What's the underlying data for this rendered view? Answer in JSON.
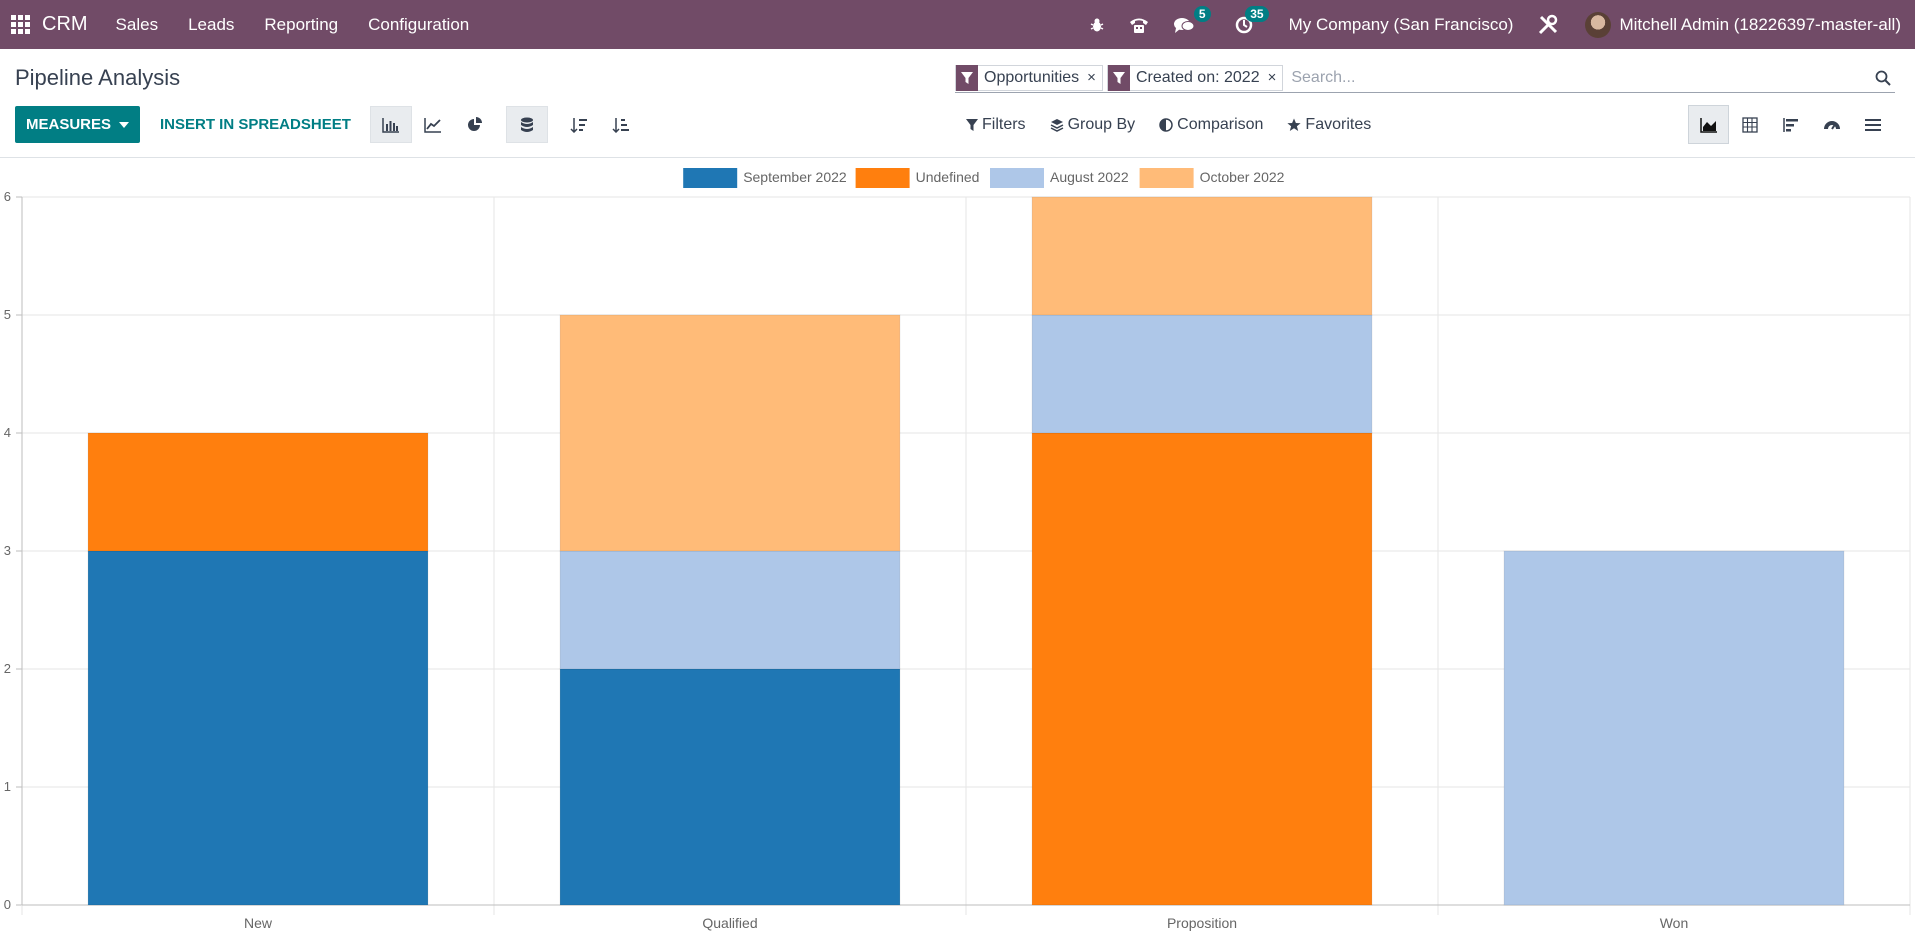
{
  "navbar": {
    "brand": "CRM",
    "menu": [
      "Sales",
      "Leads",
      "Reporting",
      "Configuration"
    ],
    "messages_badge": "5",
    "activities_badge": "35",
    "company": "My Company (San Francisco)",
    "user": "Mitchell Admin (18226397-master-all)"
  },
  "control": {
    "title": "Pipeline Analysis",
    "facets": [
      {
        "label": "Opportunities"
      },
      {
        "label": "Created on: 2022"
      }
    ],
    "search_placeholder": "Search...",
    "measures_label": "MEASURES",
    "spreadsheet_label": "INSERT IN SPREADSHEET",
    "filters_label": "Filters",
    "groupby_label": "Group By",
    "comparison_label": "Comparison",
    "favorites_label": "Favorites"
  },
  "colors": {
    "navbar": "#714b67",
    "accent": "#017e84",
    "series_september": "#1f77b4",
    "series_undefined": "#ff7f0e",
    "series_august": "#aec7e8",
    "series_october": "#ffbb78"
  },
  "chart_data": {
    "type": "bar",
    "stacked": true,
    "categories": [
      "New",
      "Qualified",
      "Proposition",
      "Won"
    ],
    "series": [
      {
        "name": "September 2022",
        "color": "#1f77b4",
        "values": [
          3,
          2,
          0,
          0
        ]
      },
      {
        "name": "Undefined",
        "color": "#ff7f0e",
        "values": [
          1,
          0,
          4,
          0
        ]
      },
      {
        "name": "August 2022",
        "color": "#aec7e8",
        "values": [
          0,
          1,
          1,
          3
        ]
      },
      {
        "name": "October 2022",
        "color": "#ffbb78",
        "values": [
          0,
          2,
          1,
          0
        ]
      }
    ],
    "ylim": [
      0,
      6
    ],
    "yticks": [
      "0",
      "1",
      "2",
      "3",
      "4",
      "5",
      "6"
    ],
    "legend": "top",
    "grid": true
  }
}
